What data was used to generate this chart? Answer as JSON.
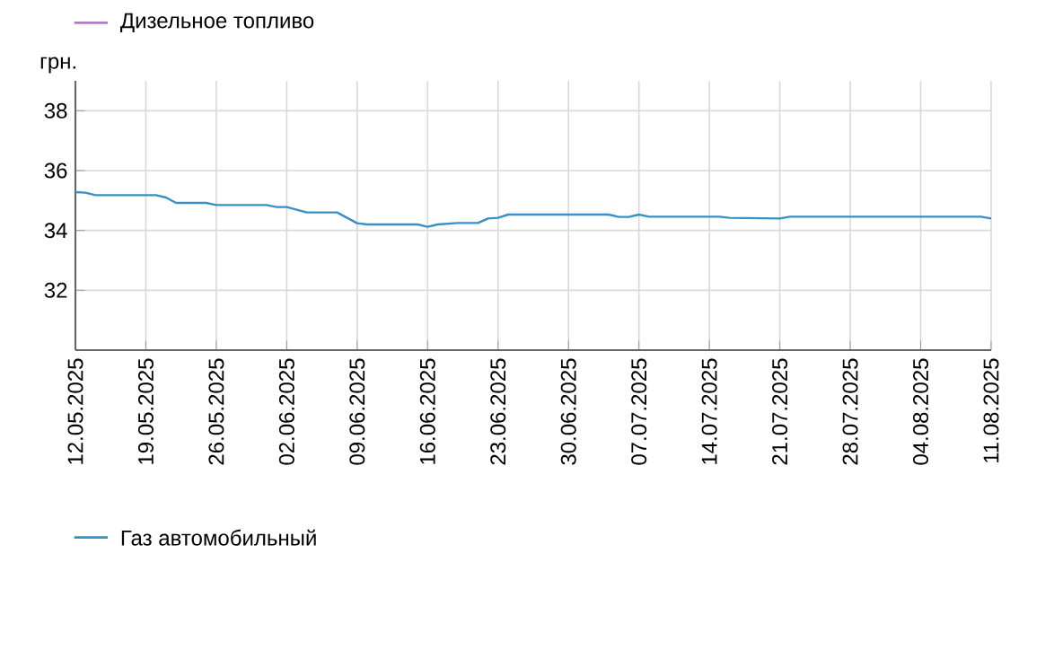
{
  "chart_data": {
    "type": "line",
    "ylabel": "грн.",
    "xlim": [
      "2025-05-12",
      "2025-08-11"
    ],
    "xticks": [
      {
        "value": "2025-05-12",
        "label": "12.05.2025"
      },
      {
        "value": "2025-05-19",
        "label": "19.05.2025"
      },
      {
        "value": "2025-05-26",
        "label": "26.05.2025"
      },
      {
        "value": "2025-06-02",
        "label": "02.06.2025"
      },
      {
        "value": "2025-06-09",
        "label": "09.06.2025"
      },
      {
        "value": "2025-06-16",
        "label": "16.06.2025"
      },
      {
        "value": "2025-06-23",
        "label": "23.06.2025"
      },
      {
        "value": "2025-06-30",
        "label": "30.06.2025"
      },
      {
        "value": "2025-07-07",
        "label": "07.07.2025"
      },
      {
        "value": "2025-07-14",
        "label": "14.07.2025"
      },
      {
        "value": "2025-07-21",
        "label": "21.07.2025"
      },
      {
        "value": "2025-07-28",
        "label": "28.07.2025"
      },
      {
        "value": "2025-08-04",
        "label": "04.08.2025"
      },
      {
        "value": "2025-08-11",
        "label": "11.08.2025"
      }
    ],
    "ylim": [
      30,
      39
    ],
    "yticks": [
      32,
      34,
      36,
      38
    ],
    "grid": true,
    "legend": "bottom",
    "marker": "none",
    "line_style": "solid",
    "series": [
      {
        "name": "Дизельное топливо",
        "color": "#b07cc6"
      },
      {
        "name": "Газ автомобильный",
        "color": "#3a8fc4",
        "x": [
          "2025-05-12",
          "2025-05-13",
          "2025-05-14",
          "2025-05-20",
          "2025-05-21",
          "2025-05-22",
          "2025-05-25",
          "2025-05-26",
          "2025-05-31",
          "2025-06-01",
          "2025-06-02",
          "2025-06-04",
          "2025-06-07",
          "2025-06-09",
          "2025-06-10",
          "2025-06-15",
          "2025-06-16",
          "2025-06-17",
          "2025-06-19",
          "2025-06-21",
          "2025-06-22",
          "2025-06-23",
          "2025-06-24",
          "2025-07-04",
          "2025-07-05",
          "2025-07-06",
          "2025-07-07",
          "2025-07-08",
          "2025-07-15",
          "2025-07-16",
          "2025-07-21",
          "2025-07-22",
          "2025-08-10",
          "2025-08-11"
        ],
        "values": [
          35.28,
          35.26,
          35.18,
          35.18,
          35.1,
          34.92,
          34.92,
          34.85,
          34.85,
          34.78,
          34.78,
          34.6,
          34.6,
          34.24,
          34.2,
          34.2,
          34.12,
          34.2,
          34.25,
          34.25,
          34.4,
          34.42,
          34.53,
          34.53,
          34.45,
          34.45,
          34.53,
          34.46,
          34.46,
          34.42,
          34.4,
          34.46,
          34.46,
          34.4
        ]
      }
    ]
  }
}
